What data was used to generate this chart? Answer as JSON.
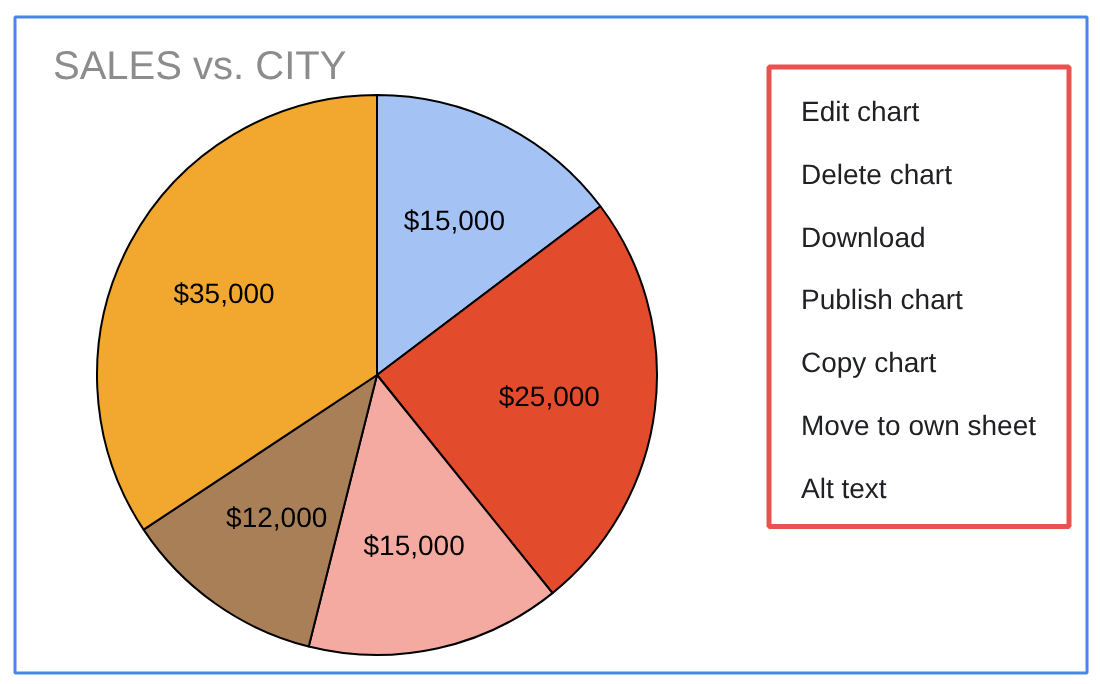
{
  "chart_data": {
    "type": "pie",
    "title": "SALES vs. CITY",
    "categories": [
      null,
      null,
      null,
      null,
      null
    ],
    "values": [
      15000,
      25000,
      15000,
      12000,
      35000
    ],
    "colors": [
      "#a4c2f4",
      "#e24b2b",
      "#f4aaa0",
      "#a87f56",
      "#f2a82f"
    ],
    "value_labels": [
      "$15,000",
      "$25,000",
      "$15,000",
      "$12,000",
      "$35,000"
    ],
    "annotations": [
      "Edit chart",
      "Delete chart",
      "Download",
      "Publish chart",
      "Copy chart",
      "Move to own sheet",
      "Alt text"
    ]
  }
}
